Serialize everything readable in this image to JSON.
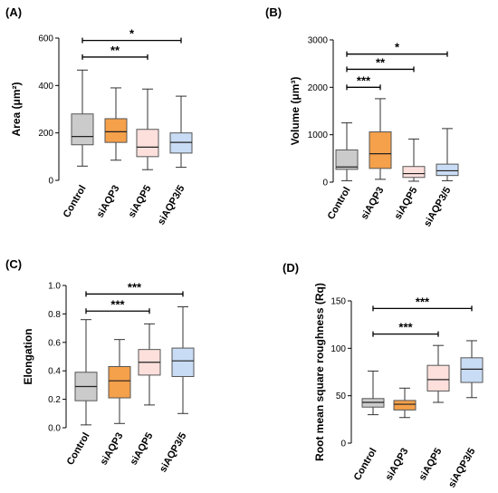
{
  "chart_data": [
    {
      "type": "boxplot",
      "panel_label": "(A)",
      "ylabel": "Area (μm²)",
      "ylim": [
        0,
        600
      ],
      "yticks": [
        "0",
        "200",
        "400",
        "600"
      ],
      "categories": [
        "Control",
        "siAQP3",
        "siAQP5",
        "siAQP3/5"
      ],
      "boxes": [
        {
          "min": 60,
          "q1": 150,
          "median": 185,
          "q3": 280,
          "max": 465
        },
        {
          "min": 85,
          "q1": 160,
          "median": 205,
          "q3": 260,
          "max": 390
        },
        {
          "min": 45,
          "q1": 100,
          "median": 140,
          "q3": 215,
          "max": 385
        },
        {
          "min": 55,
          "q1": 115,
          "median": 160,
          "q3": 200,
          "max": 355
        }
      ],
      "colors": [
        "#cbcbcb",
        "#f5a04a",
        "#fde0dc",
        "#c9dcf5"
      ],
      "significance": [
        {
          "from": 0,
          "to": 3,
          "label": "*",
          "y": 590
        },
        {
          "from": 0,
          "to": 2,
          "label": "**",
          "y": 520
        }
      ]
    },
    {
      "type": "boxplot",
      "panel_label": "(B)",
      "ylabel": "Volume (μm³)",
      "ylim": [
        0,
        3000
      ],
      "yticks": [
        "0",
        "1000",
        "2000",
        "3000"
      ],
      "categories": [
        "Control",
        "siAQP3",
        "siAQP5",
        "siAQP3/5"
      ],
      "boxes": [
        {
          "min": 30,
          "q1": 270,
          "median": 320,
          "q3": 680,
          "max": 1250
        },
        {
          "min": 60,
          "q1": 290,
          "median": 600,
          "q3": 1060,
          "max": 1760
        },
        {
          "min": 20,
          "q1": 100,
          "median": 180,
          "q3": 330,
          "max": 910
        },
        {
          "min": 30,
          "q1": 140,
          "median": 240,
          "q3": 380,
          "max": 1130
        }
      ],
      "colors": [
        "#cbcbcb",
        "#f5a04a",
        "#fde0dc",
        "#c9dcf5"
      ],
      "significance": [
        {
          "from": 0,
          "to": 3,
          "label": "*",
          "y": 2700
        },
        {
          "from": 0,
          "to": 2,
          "label": "**",
          "y": 2380
        },
        {
          "from": 0,
          "to": 1,
          "label": "***",
          "y": 2000
        }
      ]
    },
    {
      "type": "boxplot",
      "panel_label": "(C)",
      "ylabel": "Elongation",
      "ylim": [
        0,
        1.0
      ],
      "yticks": [
        "0.0",
        "0.2",
        "0.4",
        "0.6",
        "0.8",
        "1.0"
      ],
      "categories": [
        "Control",
        "siAQP3",
        "siAQP5",
        "siAQP3/5"
      ],
      "boxes": [
        {
          "min": 0.02,
          "q1": 0.19,
          "median": 0.29,
          "q3": 0.39,
          "max": 0.76
        },
        {
          "min": 0.03,
          "q1": 0.21,
          "median": 0.33,
          "q3": 0.43,
          "max": 0.62
        },
        {
          "min": 0.16,
          "q1": 0.37,
          "median": 0.46,
          "q3": 0.55,
          "max": 0.73
        },
        {
          "min": 0.1,
          "q1": 0.36,
          "median": 0.47,
          "q3": 0.56,
          "max": 0.85
        }
      ],
      "colors": [
        "#cbcbcb",
        "#f5a04a",
        "#fde0dc",
        "#c9dcf5"
      ],
      "significance": [
        {
          "from": 0,
          "to": 3,
          "label": "***",
          "y": 0.94
        },
        {
          "from": 0,
          "to": 2,
          "label": "***",
          "y": 0.82
        }
      ]
    },
    {
      "type": "boxplot",
      "panel_label": "(D)",
      "ylabel": "Root mean square roughness (Rq)",
      "ylim": [
        0,
        150
      ],
      "yticks": [
        "0",
        "50",
        "100",
        "150"
      ],
      "categories": [
        "Control",
        "siAQP3",
        "siAQP5",
        "siAQP3/5"
      ],
      "boxes": [
        {
          "min": 30,
          "q1": 38,
          "median": 43,
          "q3": 47,
          "max": 76
        },
        {
          "min": 27,
          "q1": 35,
          "median": 41,
          "q3": 45,
          "max": 58
        },
        {
          "min": 43,
          "q1": 55,
          "median": 67,
          "q3": 82,
          "max": 103
        },
        {
          "min": 48,
          "q1": 64,
          "median": 78,
          "q3": 90,
          "max": 108
        }
      ],
      "colors": [
        "#cbcbcb",
        "#f5a04a",
        "#fde0dc",
        "#c9dcf5"
      ],
      "significance": [
        {
          "from": 0,
          "to": 3,
          "label": "***",
          "y": 142
        },
        {
          "from": 0,
          "to": 2,
          "label": "***",
          "y": 115
        }
      ]
    }
  ]
}
